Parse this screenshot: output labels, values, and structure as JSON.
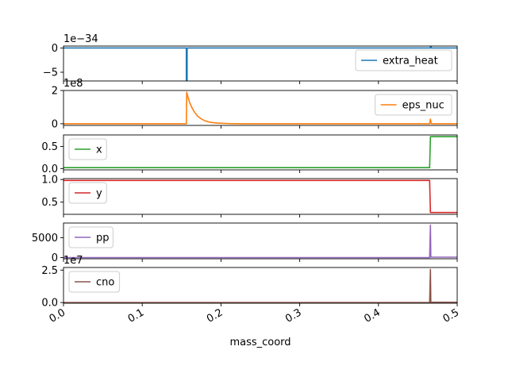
{
  "figure": {
    "xlabel": "mass_coord"
  },
  "chart_data": {
    "type": "line",
    "shared_x": {
      "label": "mass_coord",
      "range": [
        0.0,
        0.5
      ],
      "ticks": [
        "0.0",
        "0.1",
        "0.2",
        "0.3",
        "0.4",
        "0.5"
      ]
    },
    "panels": [
      {
        "name": "extra_heat",
        "color": "#1f77b4",
        "legend_pos": "right",
        "scale_text": "1e−34",
        "ylim": [
          -6.8,
          0.4
        ],
        "yticks": [
          {
            "v": 0,
            "label": "0"
          },
          {
            "v": -5,
            "label": "−5"
          }
        ],
        "points": [
          [
            0.0,
            0
          ],
          [
            0.156,
            0
          ],
          [
            0.156,
            -6.7
          ],
          [
            0.157,
            -6.7
          ],
          [
            0.157,
            0
          ],
          [
            0.466,
            0
          ],
          [
            0.466,
            0.25
          ],
          [
            0.467,
            0.25
          ],
          [
            0.467,
            0
          ],
          [
            0.5,
            0
          ]
        ]
      },
      {
        "name": "eps_nuc",
        "color": "#ff7f0e",
        "legend_pos": "right",
        "scale_text": "1e8",
        "ylim": [
          -0.1,
          2.0
        ],
        "yticks": [
          {
            "v": 0,
            "label": "0"
          },
          {
            "v": 2,
            "label": "2"
          }
        ],
        "points": [
          [
            0.0,
            0
          ],
          [
            0.156,
            0
          ],
          [
            0.1565,
            1.9
          ],
          [
            0.158,
            1.62
          ],
          [
            0.16,
            1.3
          ],
          [
            0.163,
            0.98
          ],
          [
            0.166,
            0.72
          ],
          [
            0.17,
            0.47
          ],
          [
            0.175,
            0.29
          ],
          [
            0.18,
            0.17
          ],
          [
            0.186,
            0.09
          ],
          [
            0.195,
            0.04
          ],
          [
            0.21,
            0.01
          ],
          [
            0.23,
            0.0
          ],
          [
            0.465,
            0.0
          ],
          [
            0.466,
            0.28
          ],
          [
            0.467,
            0.0
          ],
          [
            0.5,
            0.0
          ]
        ]
      },
      {
        "name": "x",
        "color": "#2ca02c",
        "legend_pos": "left",
        "scale_text": "",
        "ylim": [
          -0.03,
          0.76
        ],
        "yticks": [
          {
            "v": 0.0,
            "label": "0.0"
          },
          {
            "v": 0.5,
            "label": "0.5"
          }
        ],
        "points": [
          [
            0.0,
            0.02
          ],
          [
            0.465,
            0.02
          ],
          [
            0.466,
            0.72
          ],
          [
            0.5,
            0.72
          ]
        ]
      },
      {
        "name": "y",
        "color": "#d62728",
        "legend_pos": "left",
        "scale_text": "",
        "ylim": [
          0.23,
          1.02
        ],
        "yticks": [
          {
            "v": 1.0,
            "label": "1.0"
          },
          {
            "v": 0.5,
            "label": "0.5"
          }
        ],
        "points": [
          [
            0.0,
            0.98
          ],
          [
            0.465,
            0.98
          ],
          [
            0.466,
            0.27
          ],
          [
            0.5,
            0.27
          ]
        ]
      },
      {
        "name": "pp",
        "color": "#9467bd",
        "legend_pos": "left",
        "scale_text": "",
        "ylim": [
          -300,
          8700
        ],
        "yticks": [
          {
            "v": 5000,
            "label": "5000"
          },
          {
            "v": 0,
            "label": "0"
          }
        ],
        "points": [
          [
            0.0,
            0
          ],
          [
            0.465,
            0
          ],
          [
            0.466,
            8200
          ],
          [
            0.4665,
            100
          ],
          [
            0.5,
            100
          ]
        ]
      },
      {
        "name": "cno",
        "color": "#8c564b",
        "legend_pos": "left",
        "scale_text": "1e7",
        "ylim": [
          -0.05,
          2.7
        ],
        "yticks": [
          {
            "v": 2.5,
            "label": "2.5"
          },
          {
            "v": 0,
            "label": "0.0"
          }
        ],
        "points": [
          [
            0.0,
            0
          ],
          [
            0.465,
            0
          ],
          [
            0.466,
            2.55
          ],
          [
            0.4665,
            0.02
          ],
          [
            0.5,
            0.02
          ]
        ]
      }
    ]
  }
}
